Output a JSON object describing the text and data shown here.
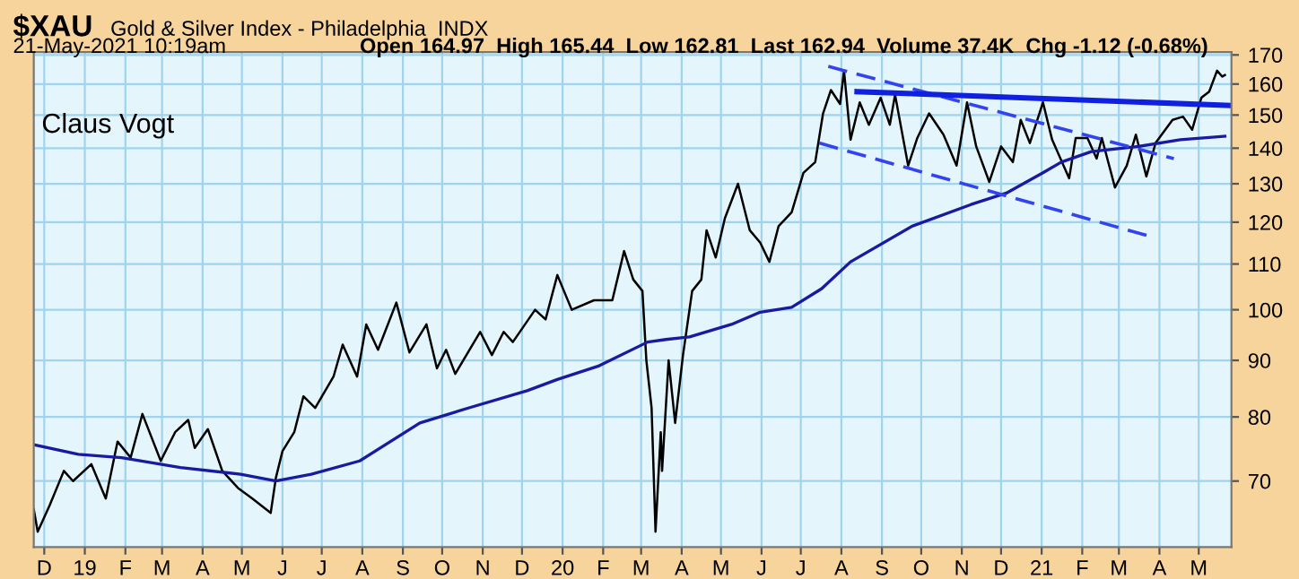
{
  "chart_data": {
    "type": "line",
    "title": "$XAU",
    "subtitle": "Gold & Silver Index - Philadelphia  INDX",
    "annotations": [
      "21-May-2021 10:19am",
      "Open 164.97  High 165.44  Low 162.81  Last 162.94  Volume 37.4K  Chg -1.12 (-0.68%)",
      "Claus Vogt"
    ],
    "log": true,
    "grid": true,
    "legend": false,
    "xlim": [
      "2018-11-23",
      "2021-05-26"
    ],
    "ylim": [
      61,
      171
    ],
    "yticks": [
      70,
      80,
      90,
      100,
      110,
      120,
      130,
      140,
      150,
      160,
      170
    ],
    "xticks": [
      {
        "value": "2018-12-01",
        "label": "D"
      },
      {
        "value": "2019-01-01",
        "label": "19"
      },
      {
        "value": "2019-02-01",
        "label": "F"
      },
      {
        "value": "2019-03-01",
        "label": "M"
      },
      {
        "value": "2019-04-01",
        "label": "A"
      },
      {
        "value": "2019-05-01",
        "label": "M"
      },
      {
        "value": "2019-06-01",
        "label": "J"
      },
      {
        "value": "2019-07-01",
        "label": "J"
      },
      {
        "value": "2019-08-01",
        "label": "A"
      },
      {
        "value": "2019-09-01",
        "label": "S"
      },
      {
        "value": "2019-10-01",
        "label": "O"
      },
      {
        "value": "2019-11-01",
        "label": "N"
      },
      {
        "value": "2019-12-01",
        "label": "D"
      },
      {
        "value": "2020-01-01",
        "label": "20"
      },
      {
        "value": "2020-02-01",
        "label": "F"
      },
      {
        "value": "2020-03-01",
        "label": "M"
      },
      {
        "value": "2020-04-01",
        "label": "A"
      },
      {
        "value": "2020-05-01",
        "label": "M"
      },
      {
        "value": "2020-06-01",
        "label": "J"
      },
      {
        "value": "2020-07-01",
        "label": "J"
      },
      {
        "value": "2020-08-01",
        "label": "A"
      },
      {
        "value": "2020-09-01",
        "label": "S"
      },
      {
        "value": "2020-10-01",
        "label": "O"
      },
      {
        "value": "2020-11-01",
        "label": "N"
      },
      {
        "value": "2020-12-01",
        "label": "D"
      },
      {
        "value": "2021-01-01",
        "label": "21"
      },
      {
        "value": "2021-02-01",
        "label": "F"
      },
      {
        "value": "2021-03-01",
        "label": "M"
      },
      {
        "value": "2021-04-01",
        "label": "A"
      },
      {
        "value": "2021-05-01",
        "label": "M"
      }
    ],
    "series": [
      {
        "color": "#000000",
        "line_style": "solid",
        "x": [
          "2018-11-23",
          "2018-11-26",
          "2018-12-05",
          "2018-12-16",
          "2018-12-23",
          "2019-01-06",
          "2019-01-17",
          "2019-01-26",
          "2019-02-05",
          "2019-02-14",
          "2019-02-28",
          "2019-03-11",
          "2019-03-21",
          "2019-03-26",
          "2019-04-05",
          "2019-04-16",
          "2019-04-28",
          "2019-05-09",
          "2019-05-23",
          "2019-05-27",
          "2019-06-01",
          "2019-06-10",
          "2019-06-17",
          "2019-06-26",
          "2019-07-10",
          "2019-07-17",
          "2019-07-28",
          "2019-08-04",
          "2019-08-13",
          "2019-08-27",
          "2019-09-06",
          "2019-09-19",
          "2019-09-27",
          "2019-10-04",
          "2019-10-11",
          "2019-10-30",
          "2019-11-08",
          "2019-11-17",
          "2019-11-24",
          "2019-12-11",
          "2019-12-19",
          "2019-12-28",
          "2020-01-08",
          "2020-01-25",
          "2020-02-08",
          "2020-02-17",
          "2020-02-24",
          "2020-03-02",
          "2020-03-05",
          "2020-03-09",
          "2020-03-12",
          "2020-03-16",
          "2020-03-17",
          "2020-03-22",
          "2020-03-27",
          "2020-04-02",
          "2020-04-09",
          "2020-04-16",
          "2020-04-20",
          "2020-04-27",
          "2020-05-04",
          "2020-05-14",
          "2020-05-23",
          "2020-05-31",
          "2020-06-07",
          "2020-06-14",
          "2020-06-24",
          "2020-07-03",
          "2020-07-12",
          "2020-07-18",
          "2020-07-24",
          "2020-07-31",
          "2020-08-03",
          "2020-08-08",
          "2020-08-15",
          "2020-08-22",
          "2020-08-31",
          "2020-09-07",
          "2020-09-11",
          "2020-09-21",
          "2020-09-28",
          "2020-10-07",
          "2020-10-18",
          "2020-10-28",
          "2020-11-05",
          "2020-11-12",
          "2020-11-22",
          "2020-12-01",
          "2020-12-10",
          "2020-12-16",
          "2020-12-23",
          "2021-01-02",
          "2021-01-09",
          "2021-01-22",
          "2021-01-27",
          "2021-02-05",
          "2021-02-12",
          "2021-02-16",
          "2021-02-26",
          "2021-03-07",
          "2021-03-14",
          "2021-03-22",
          "2021-03-29",
          "2021-04-11",
          "2021-04-19",
          "2021-04-26",
          "2021-05-03",
          "2021-05-09",
          "2021-05-15",
          "2021-05-19",
          "2021-05-21"
        ],
        "values": [
          66,
          63,
          66.5,
          71.5,
          70,
          72.5,
          67.5,
          76,
          73.5,
          80.5,
          73,
          77.5,
          79.5,
          75,
          78,
          71.5,
          69,
          67.5,
          65.5,
          70.5,
          74.5,
          77.5,
          83.5,
          81.5,
          87,
          93,
          87,
          97,
          92,
          101.5,
          91.5,
          97,
          88.5,
          92,
          87.5,
          95.5,
          91,
          95.5,
          93.5,
          100,
          98,
          107.5,
          100,
          102,
          102,
          113,
          106.5,
          104,
          90,
          81.5,
          63,
          77.5,
          71.5,
          90,
          79,
          91,
          104,
          106.5,
          118,
          111.5,
          121,
          130,
          118,
          115,
          110.5,
          119,
          122.5,
          133,
          136,
          150.5,
          158,
          153.5,
          164.5,
          142.5,
          154,
          147,
          155.5,
          147,
          156.5,
          135,
          143,
          150.5,
          144,
          135,
          154,
          140.5,
          130.5,
          140.5,
          136,
          148.5,
          141.5,
          154,
          142.5,
          131.5,
          143,
          143,
          137,
          143,
          129,
          135,
          144,
          132,
          141.5,
          148.5,
          149.5,
          145.5,
          155.5,
          157.5,
          164.5,
          162.5,
          163
        ]
      },
      {
        "color": "#1a1aa0",
        "line_style": "solid",
        "x": [
          "2018-11-23",
          "2018-12-27",
          "2019-01-29",
          "2019-03-15",
          "2019-04-30",
          "2019-05-27",
          "2019-06-23",
          "2019-07-30",
          "2019-09-14",
          "2019-10-21",
          "2019-12-05",
          "2019-12-28",
          "2020-01-29",
          "2020-03-06",
          "2020-03-20",
          "2020-04-07",
          "2020-05-09",
          "2020-05-31",
          "2020-06-24",
          "2020-07-17",
          "2020-08-08",
          "2020-09-24",
          "2020-11-08",
          "2020-12-05",
          "2021-01-02",
          "2021-01-16",
          "2021-02-08",
          "2021-03-16",
          "2021-04-17",
          "2021-05-21"
        ],
        "values": [
          75.5,
          74,
          73.5,
          72,
          71,
          70,
          71,
          73,
          79,
          81.5,
          84.5,
          86.5,
          89,
          93.5,
          94,
          94.5,
          97,
          99.5,
          100.5,
          104.5,
          110.5,
          119,
          124.5,
          127.5,
          133,
          136,
          139,
          140.5,
          142.5,
          143.5
        ]
      },
      {
        "color": "#3344ee",
        "line_style": "dashed",
        "x": [
          "2020-07-22",
          "2021-04-12"
        ],
        "values": [
          166,
          137
        ]
      },
      {
        "color": "#3344ee",
        "line_style": "dashed",
        "x": [
          "2020-07-15",
          "2021-03-25"
        ],
        "values": [
          141.5,
          116.5
        ]
      },
      {
        "color": "#1020e0",
        "line_style": "solid",
        "x": [
          "2020-08-13",
          "2021-05-26"
        ],
        "values": [
          157.5,
          153
        ]
      }
    ]
  }
}
